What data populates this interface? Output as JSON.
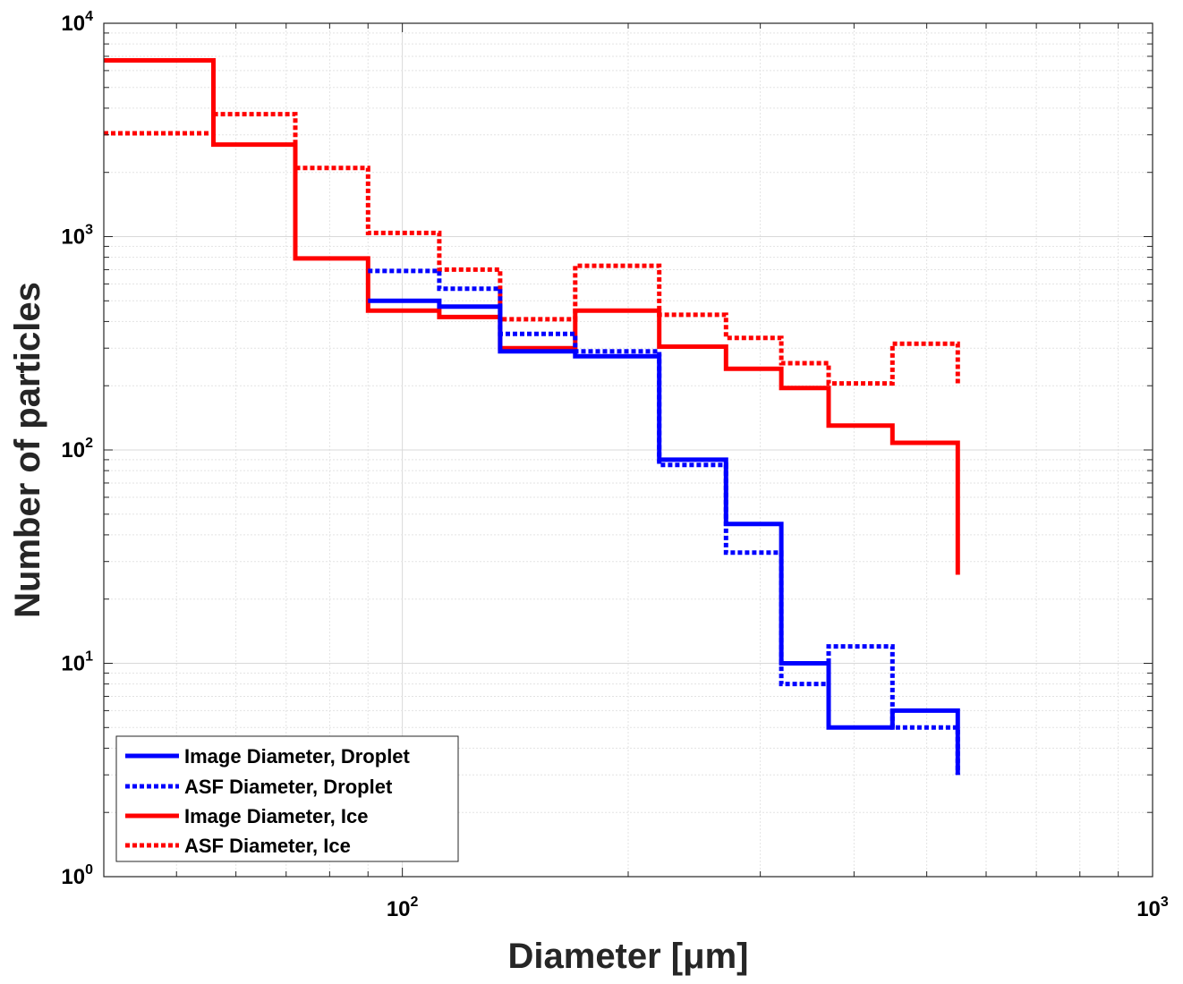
{
  "chart_data": {
    "type": "line",
    "step": true,
    "xscale": "log",
    "yscale": "log",
    "xlim": [
      40,
      1000
    ],
    "ylim": [
      1,
      10000
    ],
    "xlabel": "Diameter [μm]",
    "ylabel": "Number of particles",
    "grid": true,
    "minor_grid": true,
    "legend_position": "bottom-left",
    "x_ticks": [
      {
        "value": 100,
        "base": "10",
        "exp": "2"
      },
      {
        "value": 1000,
        "base": "10",
        "exp": "3"
      }
    ],
    "y_ticks": [
      {
        "value": 1,
        "base": "10",
        "exp": "0"
      },
      {
        "value": 10,
        "base": "10",
        "exp": "1"
      },
      {
        "value": 100,
        "base": "10",
        "exp": "2"
      },
      {
        "value": 1000,
        "base": "10",
        "exp": "3"
      },
      {
        "value": 10000,
        "base": "10",
        "exp": "4"
      }
    ],
    "series": [
      {
        "name": "Image Diameter, Droplet",
        "color": "#0000ff",
        "style": "solid",
        "edges": [
          90,
          112,
          135,
          170,
          220,
          270,
          320,
          370,
          450,
          550
        ],
        "values": [
          500,
          470,
          290,
          275,
          90,
          45,
          10,
          5,
          6
        ],
        "end_value": 3
      },
      {
        "name": "ASF Diameter, Droplet",
        "color": "#0000ff",
        "style": "dotted",
        "edges": [
          90,
          112,
          135,
          170,
          220,
          270,
          320,
          370,
          450,
          550
        ],
        "values": [
          690,
          570,
          350,
          290,
          85,
          33,
          8,
          12,
          5
        ],
        "end_value": 3
      },
      {
        "name": "Image Diameter, Ice",
        "color": "#ff0000",
        "style": "solid",
        "edges": [
          40,
          56,
          72,
          90,
          112,
          135,
          170,
          220,
          270,
          320,
          370,
          450,
          550
        ],
        "values": [
          6700,
          2700,
          790,
          450,
          420,
          300,
          450,
          305,
          240,
          195,
          130,
          108
        ],
        "end_value": 26
      },
      {
        "name": "ASF Diameter, Ice",
        "color": "#ff0000",
        "style": "dotted",
        "edges": [
          40,
          56,
          72,
          90,
          112,
          135,
          170,
          220,
          270,
          320,
          370,
          450,
          550
        ],
        "values": [
          3050,
          3750,
          2100,
          1040,
          700,
          410,
          730,
          430,
          335,
          255,
          205,
          315
        ],
        "end_value": 200
      }
    ]
  }
}
